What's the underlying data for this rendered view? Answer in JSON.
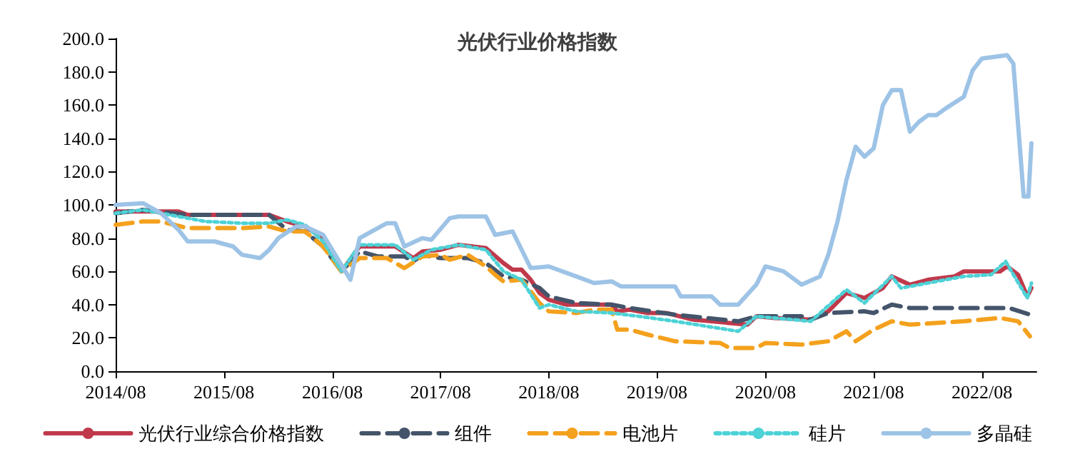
{
  "chart_data": {
    "type": "line",
    "title": "光伏行业价格指数",
    "xlim": [
      "2014-08",
      "2023-02"
    ],
    "xticks": [
      {
        "value": "2014-08",
        "label": "2014/08"
      },
      {
        "value": "2015-08",
        "label": "2015/08"
      },
      {
        "value": "2016-08",
        "label": "2016/08"
      },
      {
        "value": "2017-08",
        "label": "2017/08"
      },
      {
        "value": "2018-08",
        "label": "2018/08"
      },
      {
        "value": "2019-08",
        "label": "2019/08"
      },
      {
        "value": "2020-08",
        "label": "2020/08"
      },
      {
        "value": "2021-08",
        "label": "2021/08"
      },
      {
        "value": "2022-08",
        "label": "2022/08"
      }
    ],
    "ylim": [
      0,
      200
    ],
    "yticks": [
      {
        "value": 0,
        "label": "0.0"
      },
      {
        "value": 20,
        "label": "20.0"
      },
      {
        "value": 40,
        "label": "40.0"
      },
      {
        "value": 60,
        "label": "60.0"
      },
      {
        "value": 80,
        "label": "80.0"
      },
      {
        "value": 100,
        "label": "100.0"
      },
      {
        "value": 120,
        "label": "120.0"
      },
      {
        "value": 140,
        "label": "140.0"
      },
      {
        "value": 160,
        "label": "160.0"
      },
      {
        "value": 180,
        "label": "180.0"
      },
      {
        "value": 200,
        "label": "200.0"
      }
    ],
    "grid": false,
    "legend": "bottom",
    "marker": "none",
    "series": [
      {
        "name": "光伏行业综合价格指数",
        "color": "#c0394b",
        "line_style": "solid",
        "x": [
          "2014-08",
          "2015-03",
          "2015-04",
          "2016-01",
          "2016-03",
          "2016-05",
          "2016-07",
          "2016-09",
          "2016-11",
          "2017-03",
          "2017-05",
          "2017-06",
          "2017-08",
          "2017-10",
          "2018-01",
          "2018-03",
          "2018-04",
          "2018-05",
          "2018-06",
          "2018-07",
          "2018-08",
          "2018-10",
          "2019-03",
          "2019-03-20",
          "2019-05",
          "2019-07",
          "2019-09",
          "2019-12",
          "2020-04",
          "2020-06",
          "2020-07",
          "2020-09",
          "2021-01",
          "2021-03",
          "2021-05",
          "2021-07",
          "2021-09",
          "2021-10",
          "2021-12",
          "2022-02",
          "2022-05",
          "2022-06",
          "2022-10",
          "2022-10-25",
          "2022-12",
          "2023-01-01",
          "2023-01-15"
        ],
        "values": [
          96,
          96,
          94,
          94,
          90,
          87,
          80,
          60,
          75,
          75,
          68,
          72,
          73,
          76,
          74,
          65,
          61,
          61,
          55,
          47,
          43,
          40,
          40,
          36,
          37,
          35,
          35,
          31,
          29,
          28,
          33,
          32,
          31,
          36,
          47,
          44,
          50,
          57,
          52,
          55,
          57,
          60,
          60,
          63,
          58,
          45,
          50
        ]
      },
      {
        "name": "组件",
        "color": "#44546a",
        "line_style": "dashed",
        "x": [
          "2014-08",
          "2014-11",
          "2015-04",
          "2016-01",
          "2016-03",
          "2016-05",
          "2016-07",
          "2016-09",
          "2016-11",
          "2017-01",
          "2017-04",
          "2017-05",
          "2017-06",
          "2017-08",
          "2017-11",
          "2018-01",
          "2018-03",
          "2018-05",
          "2018-07",
          "2018-08",
          "2018-11",
          "2019-03",
          "2019-05",
          "2019-10",
          "2020-05",
          "2020-07",
          "2020-12",
          "2021-01",
          "2021-03",
          "2021-07",
          "2021-08",
          "2021-10",
          "2021-12",
          "2022-11",
          "2023-01-10"
        ],
        "values": [
          95,
          97,
          94,
          94,
          85,
          84,
          75,
          60,
          72,
          69,
          69,
          66,
          70,
          68,
          68,
          65,
          57,
          55,
          50,
          45,
          41,
          40,
          38,
          34,
          30,
          33,
          33,
          31,
          35,
          36,
          35,
          40,
          38,
          38,
          34
        ]
      },
      {
        "name": "电池片",
        "color": "#f4a11d",
        "line_style": "dashed",
        "x": [
          "2014-08",
          "2014-11",
          "2015-01",
          "2015-04",
          "2015-10",
          "2016-01",
          "2016-03",
          "2016-05",
          "2016-07",
          "2016-09",
          "2016-11",
          "2017-02",
          "2017-04",
          "2017-06",
          "2017-08",
          "2017-09",
          "2017-11",
          "2018-01",
          "2018-02",
          "2018-03",
          "2018-05",
          "2018-06",
          "2018-07",
          "2018-08",
          "2018-11",
          "2019-01",
          "2019-03",
          "2019-03-20",
          "2019-05",
          "2019-07",
          "2019-10",
          "2020-03",
          "2020-04",
          "2020-07",
          "2020-08",
          "2020-12",
          "2021-03",
          "2021-05",
          "2021-06",
          "2021-08",
          "2021-10",
          "2021-12",
          "2022-06",
          "2022-10",
          "2022-12",
          "2023-01-10"
        ],
        "values": [
          88,
          90,
          90,
          86,
          86,
          87,
          84,
          84,
          75,
          60,
          68,
          68,
          62,
          69,
          70,
          67,
          70,
          63,
          58,
          54,
          55,
          48,
          41,
          36,
          35,
          37,
          37,
          25,
          25,
          22,
          18,
          17,
          14,
          14,
          17,
          16,
          18,
          24,
          18,
          25,
          30,
          28,
          30,
          32,
          30,
          21
        ]
      },
      {
        "name": "硅片",
        "color": "#4dd2d6",
        "line_style": "dotted",
        "x": [
          "2014-08",
          "2014-11",
          "2015-03",
          "2015-06",
          "2015-10",
          "2016-01",
          "2016-03",
          "2016-05",
          "2016-07",
          "2016-09",
          "2016-11",
          "2017-03",
          "2017-05",
          "2017-07",
          "2017-10",
          "2018-01",
          "2018-03",
          "2018-05",
          "2018-07",
          "2018-08",
          "2018-11",
          "2019-03",
          "2019-06",
          "2019-10",
          "2020-05",
          "2020-07",
          "2021-01",
          "2021-05",
          "2021-07",
          "2021-10",
          "2021-11",
          "2022-06",
          "2022-09",
          "2022-10-20",
          "2023-01-01",
          "2023-01-15"
        ],
        "values": [
          95,
          97,
          93,
          90,
          89,
          89,
          91,
          88,
          78,
          60,
          76,
          76,
          67,
          73,
          76,
          73,
          60,
          55,
          38,
          40,
          36,
          35,
          33,
          30,
          24,
          33,
          30,
          49,
          41,
          57,
          50,
          57,
          58,
          66,
          44,
          53
        ]
      },
      {
        "name": "多晶硅",
        "color": "#9dc3e6",
        "line_style": "solid",
        "x": [
          "2014-08",
          "2014-11",
          "2015-01",
          "2015-03",
          "2015-04",
          "2015-07",
          "2015-09",
          "2015-10",
          "2015-12",
          "2016-01",
          "2016-02",
          "2016-04",
          "2016-05",
          "2016-07",
          "2016-10",
          "2016-11",
          "2017-01",
          "2017-02",
          "2017-03",
          "2017-04",
          "2017-06",
          "2017-07",
          "2017-09",
          "2017-10",
          "2018-01",
          "2018-02",
          "2018-04",
          "2018-06",
          "2018-08",
          "2018-11",
          "2019-01",
          "2019-03",
          "2019-04",
          "2019-10",
          "2019-10-20",
          "2020-02",
          "2020-03",
          "2020-05",
          "2020-07",
          "2020-08",
          "2020-10",
          "2020-12",
          "2021-02",
          "2021-03",
          "2021-04",
          "2021-05",
          "2021-06",
          "2021-07",
          "2021-08",
          "2021-09",
          "2021-10",
          "2021-11",
          "2021-12",
          "2022-01",
          "2022-02",
          "2022-03",
          "2022-04",
          "2022-06",
          "2022-07",
          "2022-08",
          "2022-10-25",
          "2022-11-15",
          "2022-12-20",
          "2023-01-05",
          "2023-01-15"
        ],
        "values": [
          100,
          101,
          95,
          85,
          78,
          78,
          75,
          70,
          68,
          73,
          80,
          87,
          87,
          82,
          55,
          80,
          86,
          89,
          89,
          75,
          80,
          79,
          92,
          93,
          93,
          82,
          84,
          62,
          63,
          57,
          53,
          54,
          51,
          51,
          45,
          45,
          40,
          40,
          52,
          63,
          60,
          52,
          57,
          70,
          90,
          115,
          135,
          129,
          134,
          160,
          169,
          169,
          144,
          150,
          154,
          154,
          158,
          165,
          181,
          188,
          190,
          185,
          105,
          105,
          137
        ]
      }
    ]
  }
}
